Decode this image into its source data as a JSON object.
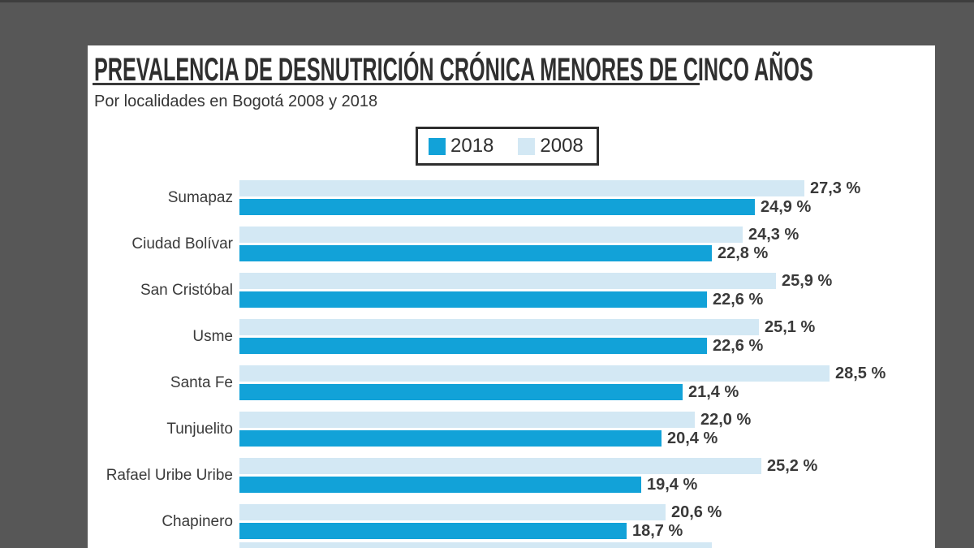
{
  "page": {
    "background_color": "#575757",
    "top_strip_color": "#3e3e3e",
    "panel_color": "#ffffff"
  },
  "header": {
    "title": "PREVALENCIA DE DESNUTRICIÓN CRÓNICA MENORES DE CINCO AÑOS",
    "subtitle": "Por localidades en Bogotá 2008 y 2018"
  },
  "legend": {
    "items": [
      {
        "label": "2018",
        "color": "#12a2d8"
      },
      {
        "label": "2008",
        "color": "#d3e8f4"
      }
    ]
  },
  "chart_data": {
    "type": "bar",
    "orientation": "horizontal",
    "title": "PREVALENCIA DE DESNUTRICIÓN CRÓNICA MENORES DE CINCO AÑOS",
    "subtitle": "Por localidades en Bogotá 2008 y 2018",
    "value_suffix": " %",
    "decimal_separator": ",",
    "xlim": [
      0,
      28.5
    ],
    "categories": [
      "Sumapaz",
      "Ciudad Bolívar",
      "San Cristóbal",
      "Usme",
      "Santa Fe",
      "Tunjuelito",
      "Rafael Uribe Uribe",
      "Chapinero"
    ],
    "series": [
      {
        "name": "2008",
        "color": "#d3e8f4",
        "values": [
          27.3,
          24.3,
          25.9,
          25.1,
          28.5,
          22.0,
          25.2,
          20.6
        ],
        "labels": [
          "27,3 %",
          "24,3 %",
          "25,9 %",
          "25,1 %",
          "28,5 %",
          "22,0 %",
          "25,2 %",
          "20,6 %"
        ]
      },
      {
        "name": "2018",
        "color": "#12a2d8",
        "values": [
          24.9,
          22.8,
          22.6,
          22.6,
          21.4,
          20.4,
          19.4,
          18.7
        ],
        "labels": [
          "24,9 %",
          "22,8 %",
          "22,6 %",
          "22,6 %",
          "21,4 %",
          "20,4 %",
          "19,4 %",
          "18,7 %"
        ]
      }
    ],
    "legend_position": "top-center",
    "grid": false,
    "cutoff_partial_row": {
      "series": "2008",
      "approx_value": 22.8
    }
  }
}
